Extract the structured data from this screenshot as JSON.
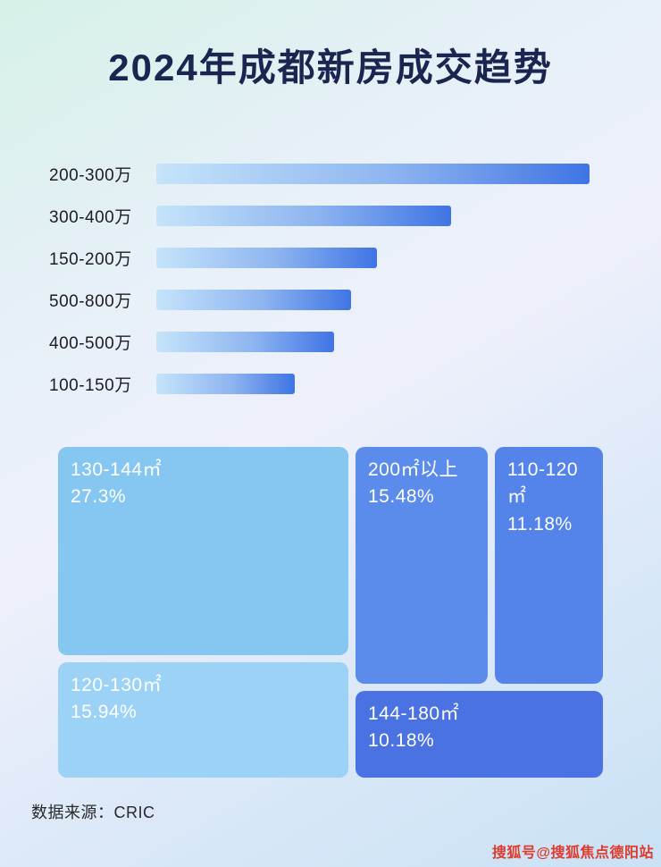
{
  "title": "2024年成都新房成交趋势",
  "source_label": "数据来源：CRIC",
  "watermark": "搜狐号@搜狐焦点德阳站",
  "colors": {
    "title": "#1a2550",
    "bar_gradient_start": "#c5e4fa",
    "bar_gradient_end": "#3f74e4",
    "block_130_144": "#86c7f2",
    "block_120_130": "#9cd2f6",
    "block_200_plus": "#5b8beb",
    "block_110_120": "#5484ea",
    "block_144_180": "#4a72e3",
    "watermark_red": "#df3a2b"
  },
  "chart_data": [
    {
      "type": "bar",
      "orientation": "horizontal",
      "title": "2024年成都新房成交趋势",
      "categories": [
        "200-300万",
        "300-400万",
        "150-200万",
        "500-800万",
        "400-500万",
        "100-150万"
      ],
      "values_relative": [
        100,
        68,
        51,
        45,
        41,
        32
      ],
      "xlabel": "",
      "ylabel": "",
      "axis_ticks": "none",
      "legend": "none"
    },
    {
      "type": "treemap",
      "blocks": [
        {
          "label": "130-144㎡",
          "value": "27.3%"
        },
        {
          "label": "120-130㎡",
          "value": "15.94%"
        },
        {
          "label": "200㎡以上",
          "value": "15.48%"
        },
        {
          "label": "110-120㎡",
          "value": "11.18%"
        },
        {
          "label": "144-180㎡",
          "value": "10.18%"
        }
      ]
    }
  ]
}
